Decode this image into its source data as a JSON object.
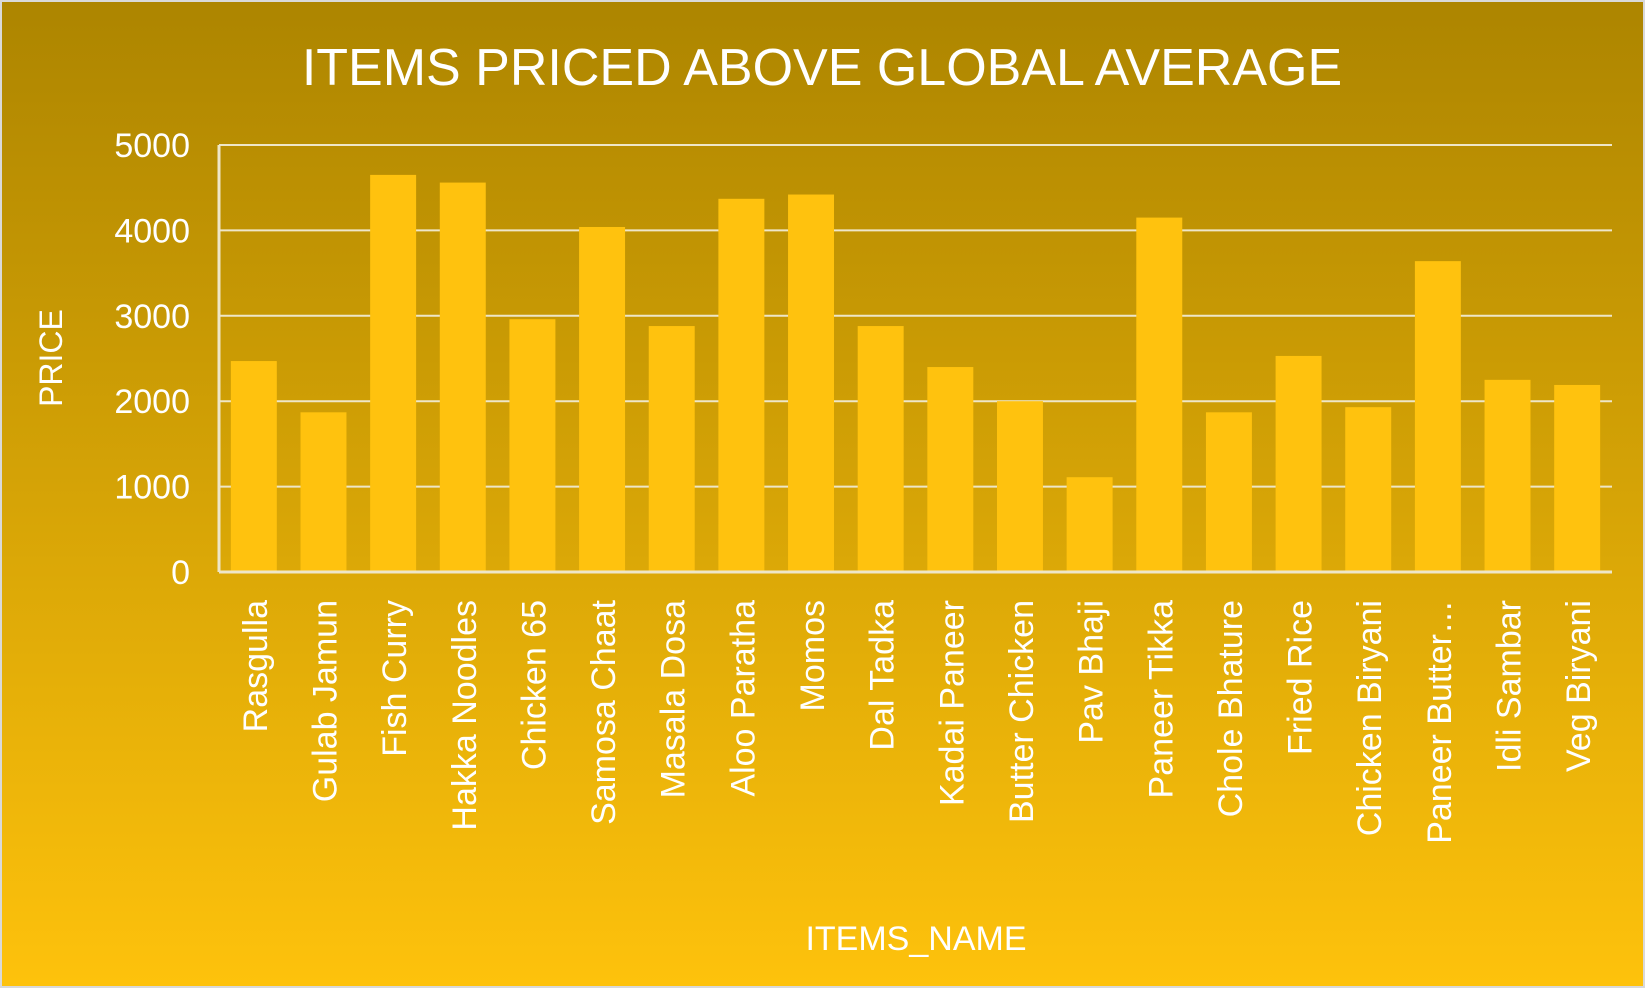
{
  "colors": {
    "background_top": "#AD8500",
    "background_bottom": "#FEC20C",
    "bar": "#FFC20E",
    "gridline": "#EEE6C8",
    "text": "#FFFFFF",
    "border": "#D9D9D9"
  },
  "chart_data": {
    "type": "bar",
    "title": "ITEMS PRICED ABOVE GLOBAL AVERAGE",
    "xlabel": "ITEMS_NAME",
    "ylabel": "PRICE",
    "ylim": [
      0,
      5000
    ],
    "yticks": [
      0,
      1000,
      2000,
      3000,
      4000,
      5000
    ],
    "grid": true,
    "legend": "none",
    "categories": [
      "Rasgulla",
      "Gulab Jamun",
      "Fish Curry",
      "Hakka Noodles",
      "Chicken 65",
      "Samosa Chaat",
      "Masala Dosa",
      "Aloo Paratha",
      "Momos",
      "Dal Tadka",
      "Kadai Paneer",
      "Butter Chicken",
      "Pav Bhaji",
      "Paneer Tikka",
      "Chole Bhature",
      "Fried Rice",
      "Chicken Biryani",
      "Paneer Butter…",
      "Idli Sambar",
      "Veg Biryani"
    ],
    "values": [
      2470,
      1870,
      4650,
      4560,
      2960,
      4040,
      2880,
      4370,
      4420,
      2880,
      2400,
      2000,
      1110,
      4150,
      1870,
      2530,
      1930,
      3640,
      2250,
      2190
    ]
  }
}
